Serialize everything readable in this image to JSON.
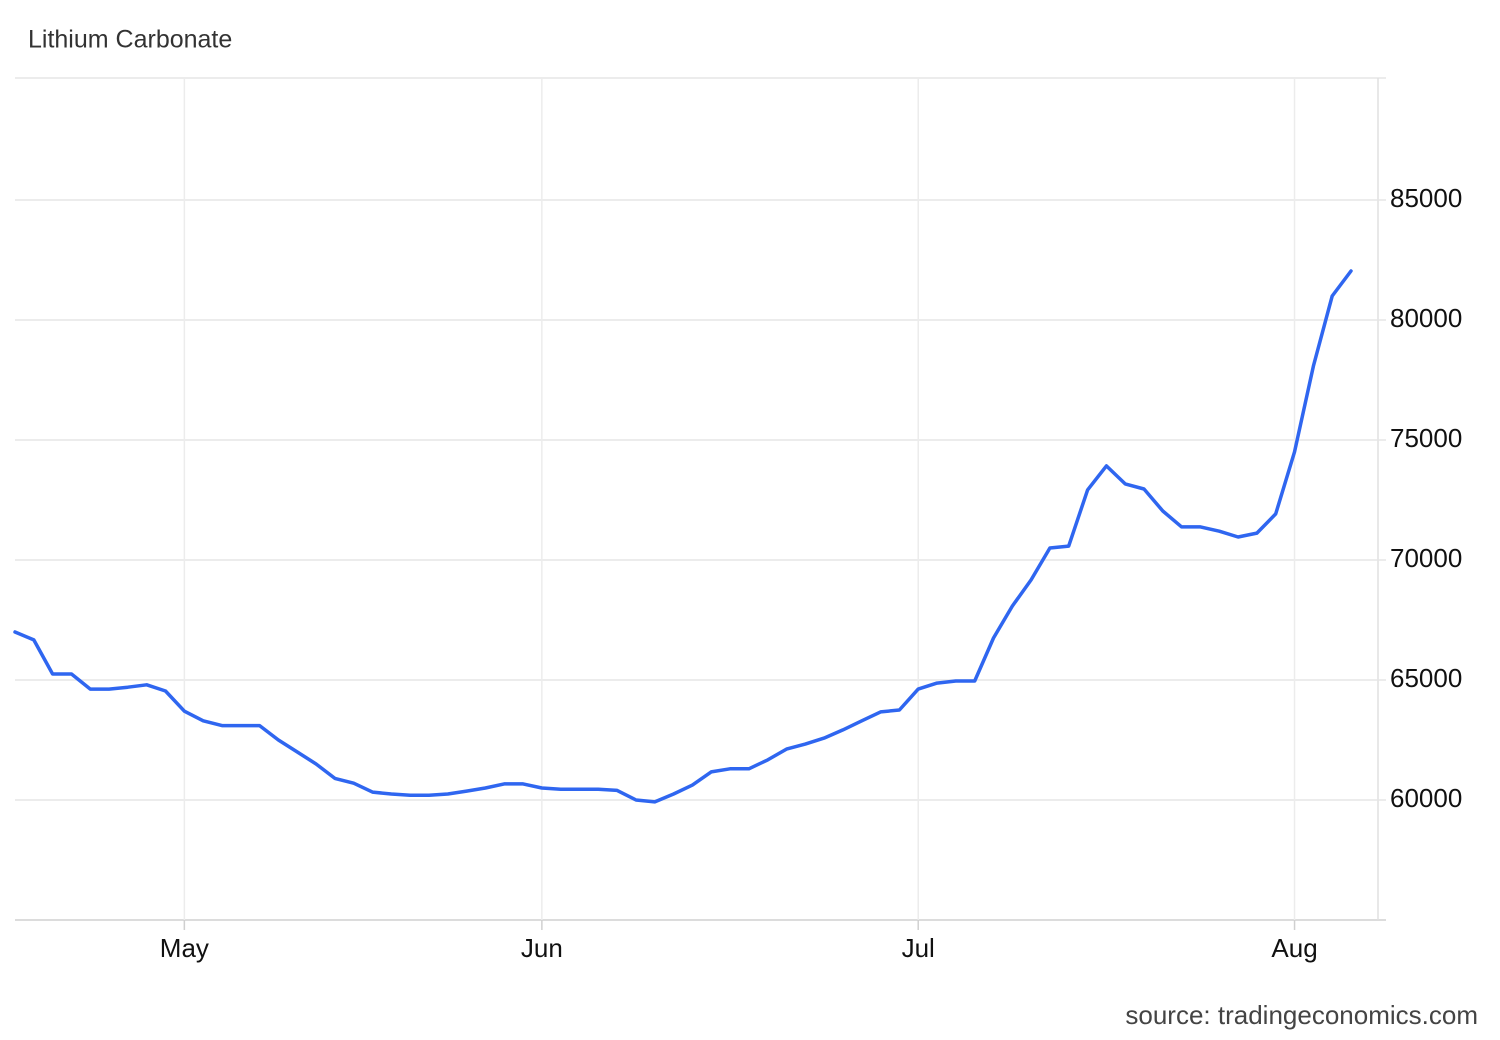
{
  "chart_data": {
    "type": "line",
    "title": "Lithium Carbonate",
    "source": "source: tradingeconomics.com",
    "categories": [
      null,
      null,
      null,
      null,
      null,
      null,
      null,
      null,
      null,
      "May",
      null,
      null,
      null,
      null,
      null,
      null,
      null,
      null,
      null,
      null,
      null,
      null,
      null,
      null,
      null,
      null,
      null,
      null,
      "Jun",
      null,
      null,
      null,
      null,
      null,
      null,
      null,
      null,
      null,
      null,
      null,
      null,
      null,
      null,
      null,
      null,
      null,
      null,
      null,
      "Jul",
      null,
      null,
      null,
      null,
      null,
      null,
      null,
      null,
      null,
      null,
      null,
      null,
      null,
      null,
      null,
      null,
      null,
      null,
      null,
      "Aug",
      null,
      null,
      null
    ],
    "series": [
      {
        "name": "Lithium Carbonate",
        "color": "#2f66f0",
        "values": [
          67000,
          66670,
          65250,
          65250,
          64620,
          64620,
          64700,
          64800,
          64540,
          63700,
          63300,
          63100,
          63100,
          63100,
          62500,
          62000,
          61500,
          60900,
          60700,
          60330,
          60250,
          60200,
          60200,
          60250,
          60370,
          60500,
          60670,
          60670,
          60500,
          60450,
          60450,
          60450,
          60400,
          60000,
          59920,
          60250,
          60620,
          61170,
          61300,
          61300,
          61670,
          62120,
          62330,
          62580,
          62920,
          63300,
          63670,
          63750,
          64620,
          64870,
          64960,
          64960,
          66750,
          68080,
          69170,
          70500,
          70580,
          72920,
          73920,
          73170,
          72960,
          72040,
          71380,
          71380,
          71200,
          70960,
          71120,
          71920,
          74500,
          78080,
          81000,
          82040
        ]
      }
    ],
    "ylim": [
      55000,
      90000
    ],
    "yticks": [
      60000,
      65000,
      70000,
      75000,
      80000,
      85000
    ],
    "grid": true
  }
}
